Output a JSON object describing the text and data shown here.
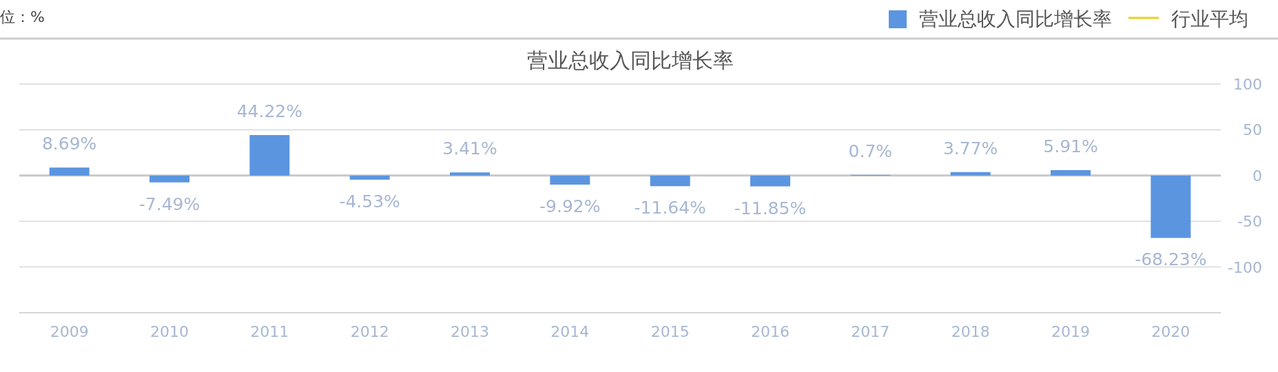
{
  "chart_data": {
    "type": "bar",
    "title": "营业总收入同比增长率",
    "annotations": [
      "位：%"
    ],
    "categories": [
      "2009",
      "2010",
      "2011",
      "2012",
      "2013",
      "2014",
      "2015",
      "2016",
      "2017",
      "2018",
      "2019",
      "2020"
    ],
    "series": [
      {
        "name": "营业总收入同比增长率",
        "color": "#5b95e0",
        "values": [
          8.69,
          -7.49,
          44.22,
          -4.53,
          3.41,
          -9.92,
          -11.64,
          -11.85,
          0.7,
          3.77,
          5.91,
          -68.23
        ],
        "value_labels": [
          "8.69%",
          "-7.49%",
          "44.22%",
          "-4.53%",
          "3.41%",
          "-9.92%",
          "-11.64%",
          "-11.85%",
          "0.7%",
          "3.77%",
          "5.91%",
          "-68.23%"
        ]
      },
      {
        "name": "行业平均",
        "type": "line",
        "color": "#e8d21e",
        "values": [
          null,
          null,
          null,
          null,
          null,
          null,
          null,
          null,
          null,
          null,
          null,
          null
        ]
      }
    ],
    "ylim": [
      -150,
      100
    ],
    "yticks": [
      -100,
      -50,
      0,
      50,
      100
    ],
    "grid": "y",
    "legend": "top right"
  }
}
